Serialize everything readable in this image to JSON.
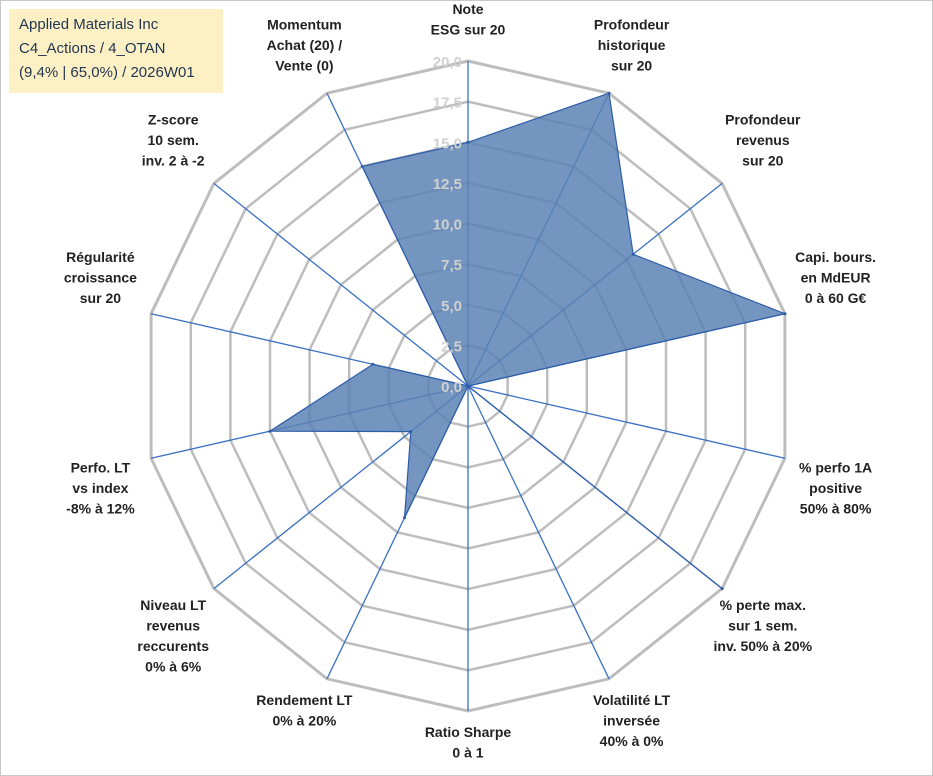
{
  "header": {
    "line1": "Applied Materials Inc",
    "line2": "C4_Actions / 4_OTAN",
    "line3": "(9,4% | 65,0%) / 2026W01"
  },
  "colors": {
    "fill": "#5b82b4",
    "stroke": "#2e5da8",
    "grid": "#bdbdbd",
    "spoke": "#3a6fc4",
    "header_bg": "#fdf0c4"
  },
  "chart_data": {
    "type": "radar",
    "title": "",
    "rlim": [
      0,
      20
    ],
    "ticks": [
      "0,0",
      "2,5",
      "5,0",
      "7,5",
      "10,0",
      "12,5",
      "15,0",
      "17,5",
      "20,0"
    ],
    "grid": true,
    "axes": [
      {
        "label": [
          "Note",
          "ESG sur 20"
        ],
        "value": 15.0
      },
      {
        "label": [
          "Profondeur",
          "historique",
          "sur 20"
        ],
        "value": 20.0
      },
      {
        "label": [
          "Profondeur",
          "revenus",
          "sur 20"
        ],
        "value": 13.0
      },
      {
        "label": [
          "Capi. bours.",
          "en MdEUR",
          "0 à 60 G€"
        ],
        "value": 20.0
      },
      {
        "label": [
          "% perfo 1A",
          "positive",
          "50% à 80%"
        ],
        "value": 0.0
      },
      {
        "label": [
          "% perte max.",
          "sur 1 sem.",
          "inv. 50% à 20%"
        ],
        "value": 20.0
      },
      {
        "label": [
          "Volatilité LT",
          "inversée",
          "40% à 0%"
        ],
        "value": 0.0
      },
      {
        "label": [
          "Ratio Sharpe",
          "0 à 1"
        ],
        "value": 0.0
      },
      {
        "label": [
          "Rendement LT",
          "0% à 20%"
        ],
        "value": 9.0
      },
      {
        "label": [
          "Niveau LT",
          "revenus",
          "reccurents",
          "0% à 6%"
        ],
        "value": 4.5
      },
      {
        "label": [
          "Perfo. LT",
          "vs index",
          "-8% à 12%"
        ],
        "value": 12.5
      },
      {
        "label": [
          "Régularité",
          "croissance",
          "sur 20"
        ],
        "value": 6.0
      },
      {
        "label": [
          "Z-score",
          "10 sem.",
          "inv. 2 à -2"
        ],
        "value": 0.0
      },
      {
        "label": [
          "Momentum",
          "Achat (20) /",
          "Vente (0)"
        ],
        "value": 15.0
      }
    ]
  }
}
